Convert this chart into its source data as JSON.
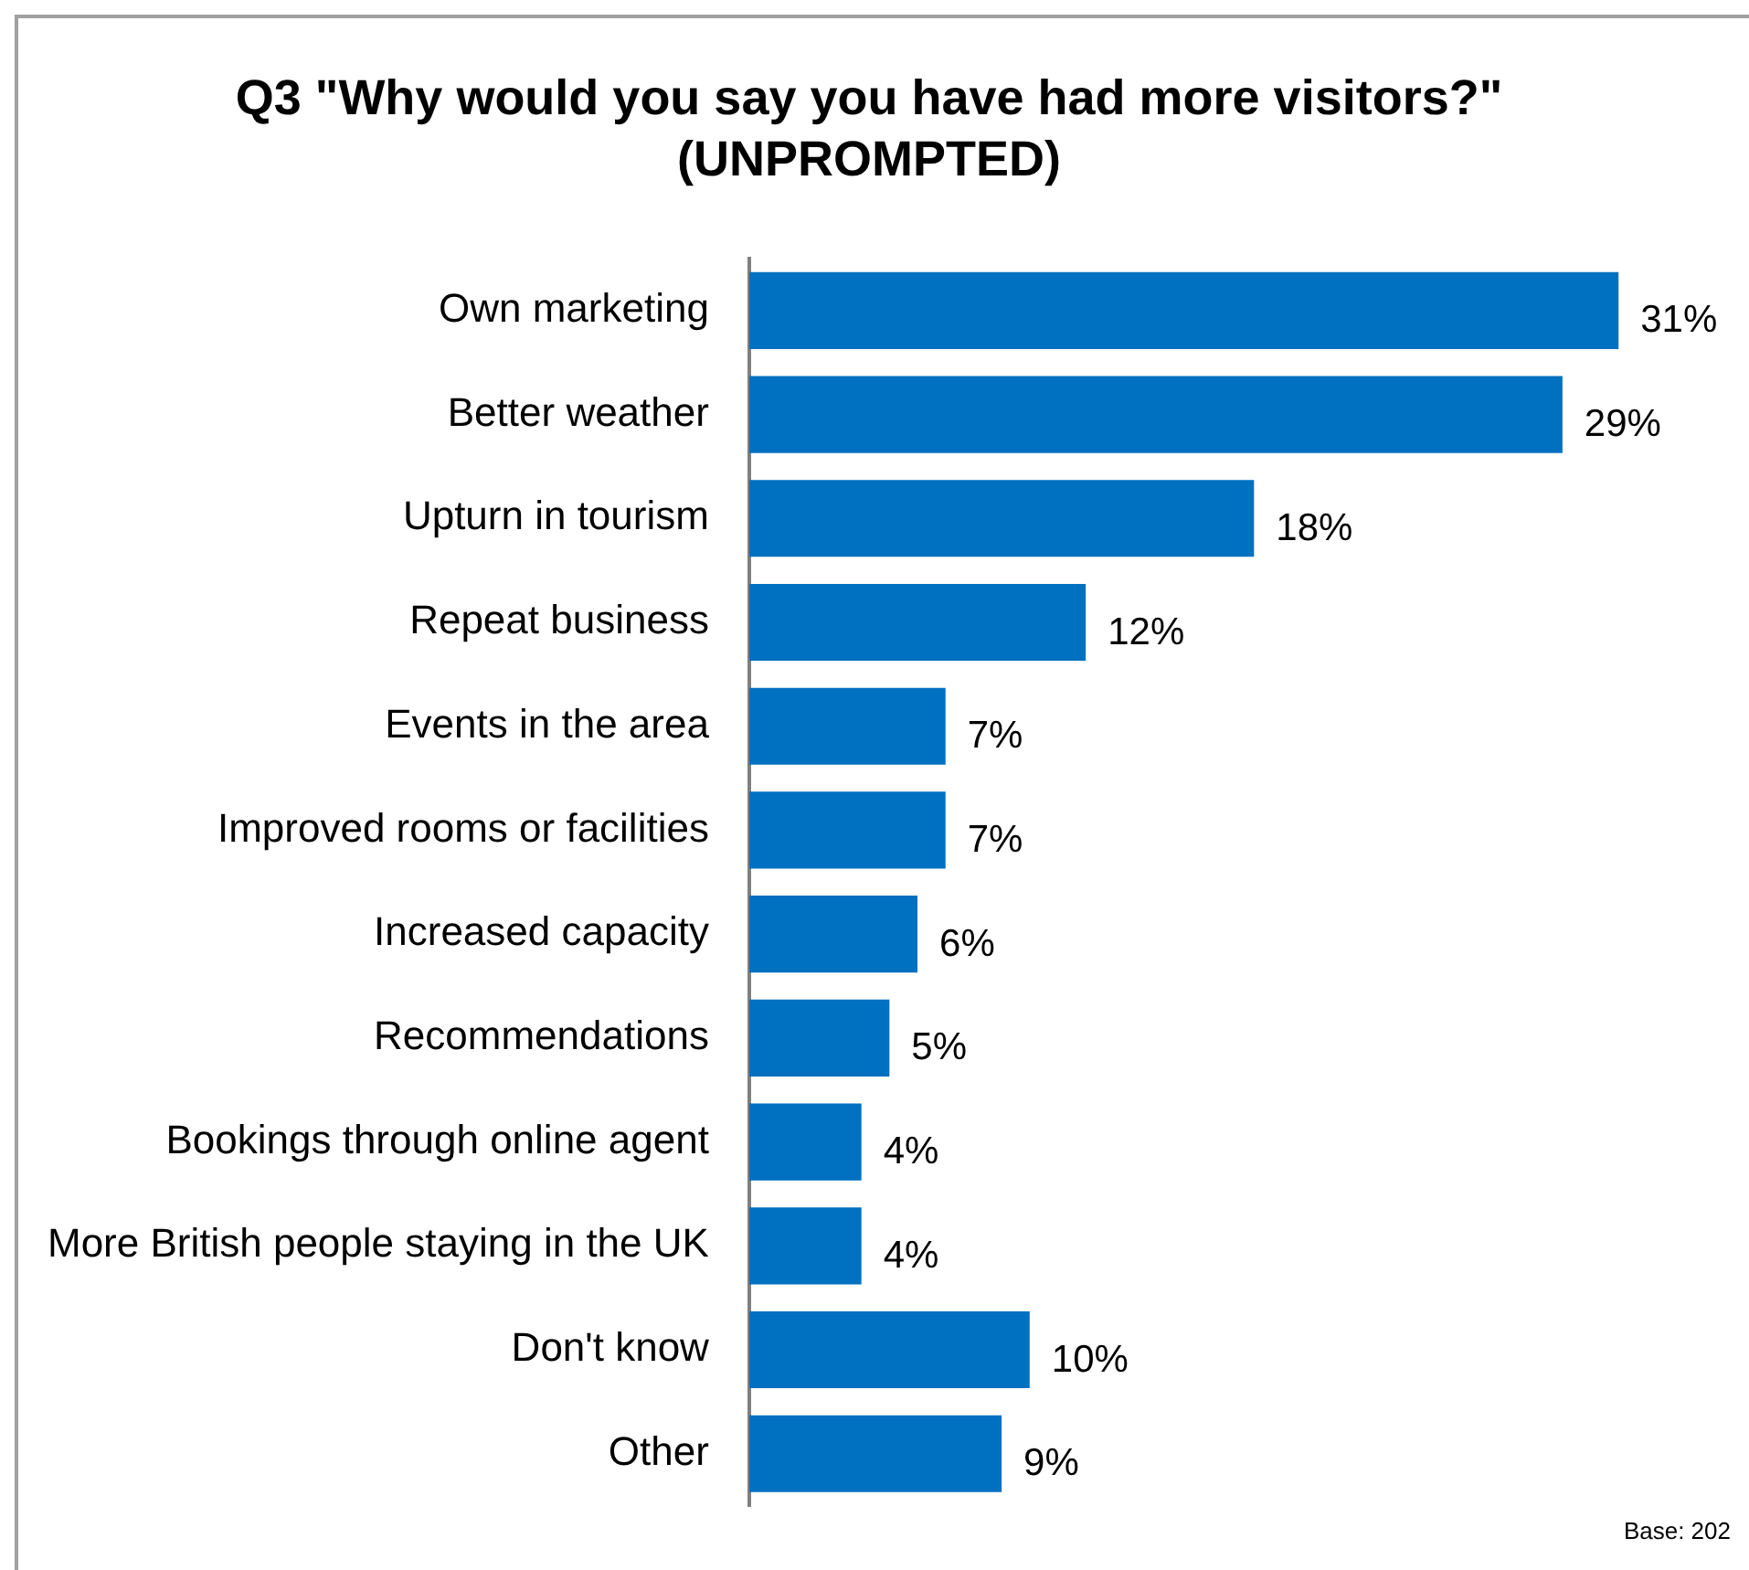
{
  "chart_data": {
    "type": "bar",
    "orientation": "horizontal",
    "title": "Q3 \"Why would you say you have had more visitors?\"\n(UNPROMPTED)",
    "categories": [
      "Own marketing",
      "Better weather",
      "Upturn in tourism",
      "Repeat business",
      "Events in the area",
      "Improved rooms or facilities",
      "Increased capacity",
      "Recommendations",
      "Bookings through online agent",
      "More British people staying in the UK",
      "Don't know",
      "Other"
    ],
    "values": [
      31,
      29,
      18,
      12,
      7,
      7,
      6,
      5,
      4,
      4,
      10,
      9
    ],
    "value_labels": [
      "31%",
      "29%",
      "18%",
      "12%",
      "7%",
      "7%",
      "6%",
      "5%",
      "4%",
      "4%",
      "10%",
      "9%"
    ],
    "color": "#0070c0",
    "annotations": [
      "Base: 202"
    ]
  }
}
